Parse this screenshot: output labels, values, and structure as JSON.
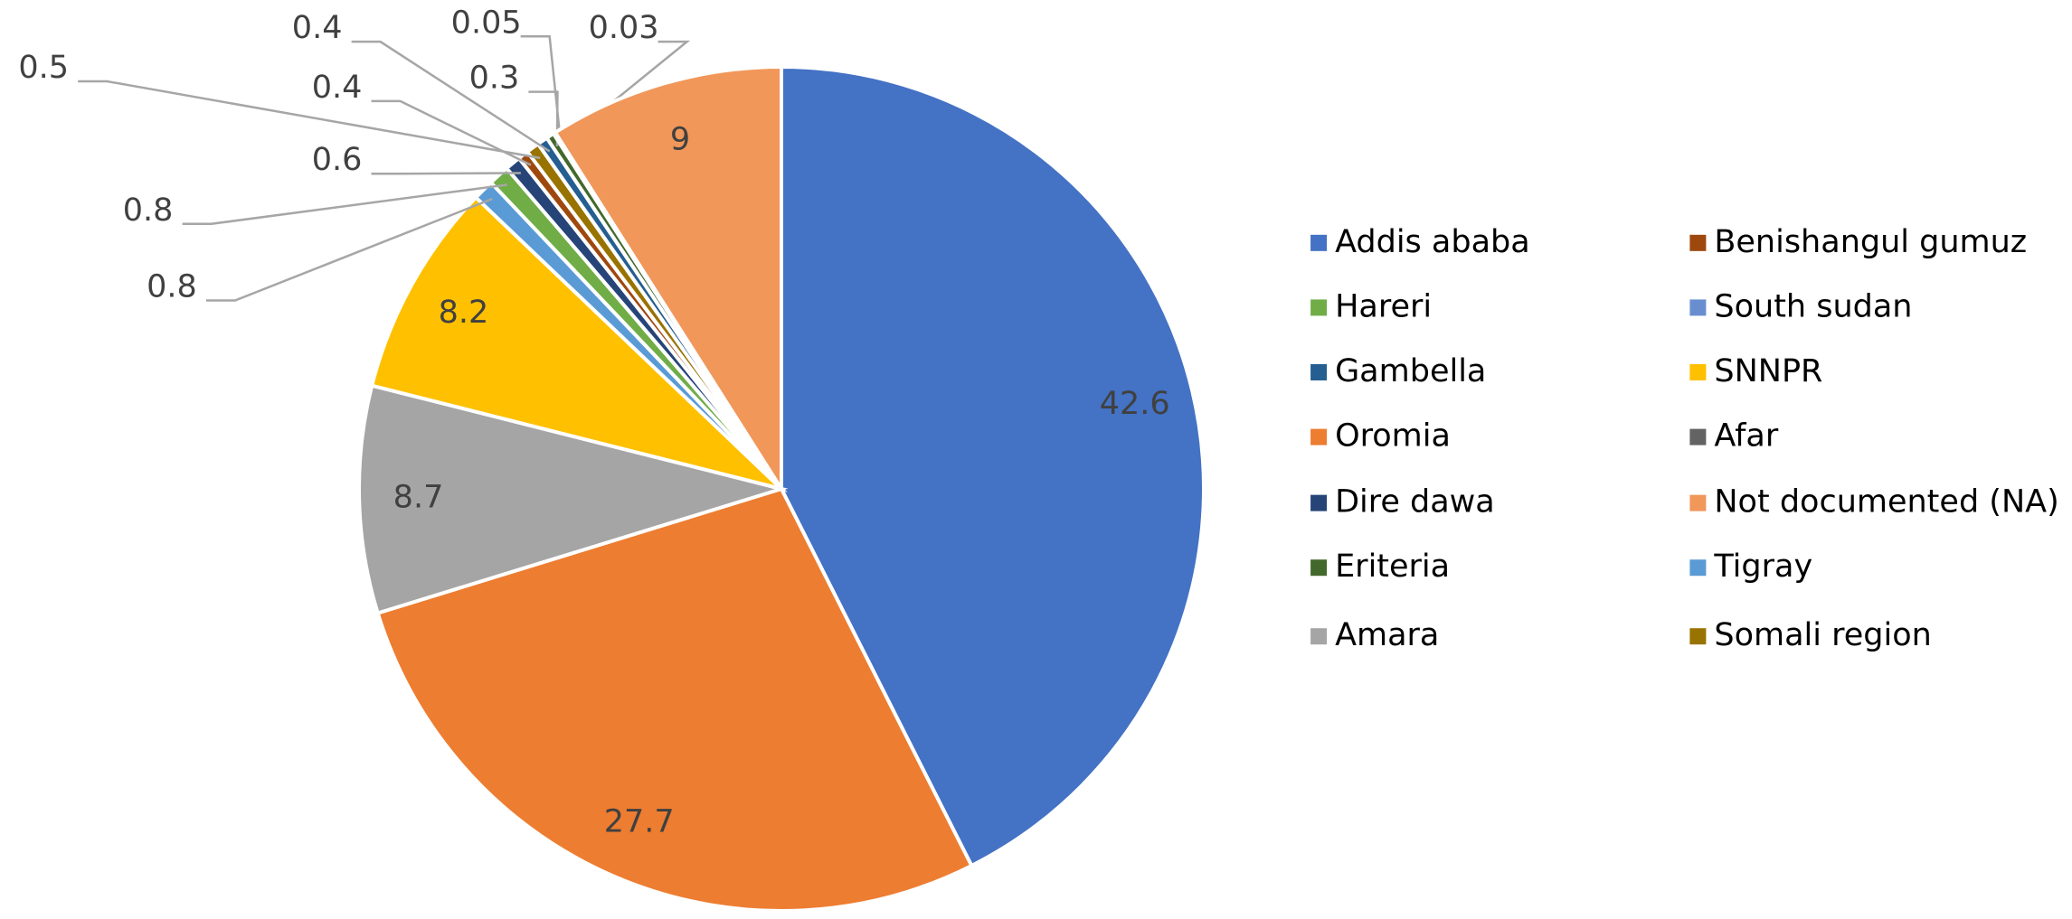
{
  "chart_data": {
    "type": "pie",
    "categories": [
      "Addis ababa",
      "Oromia",
      "Amara",
      "SNNPR",
      "Tigray",
      "Hareri",
      "Dire dawa",
      "Benishangul gumuz",
      "Somali region",
      "Gambella",
      "Eriteria",
      "South sudan",
      "Afar",
      "Not documented (NA)"
    ],
    "values": [
      42.6,
      27.7,
      8.7,
      8.2,
      0.8,
      0.8,
      0.6,
      0.4,
      0.5,
      0.4,
      0.3,
      0.05,
      0.03,
      9
    ],
    "colors": [
      "#4472C4",
      "#ED7D31",
      "#A5A5A5",
      "#FFC000",
      "#5B9BD5",
      "#70AD47",
      "#264478",
      "#9E480E",
      "#997300",
      "#255E91",
      "#43682B",
      "#698ED0",
      "#636363",
      "#F1975A"
    ],
    "legend": "right"
  }
}
